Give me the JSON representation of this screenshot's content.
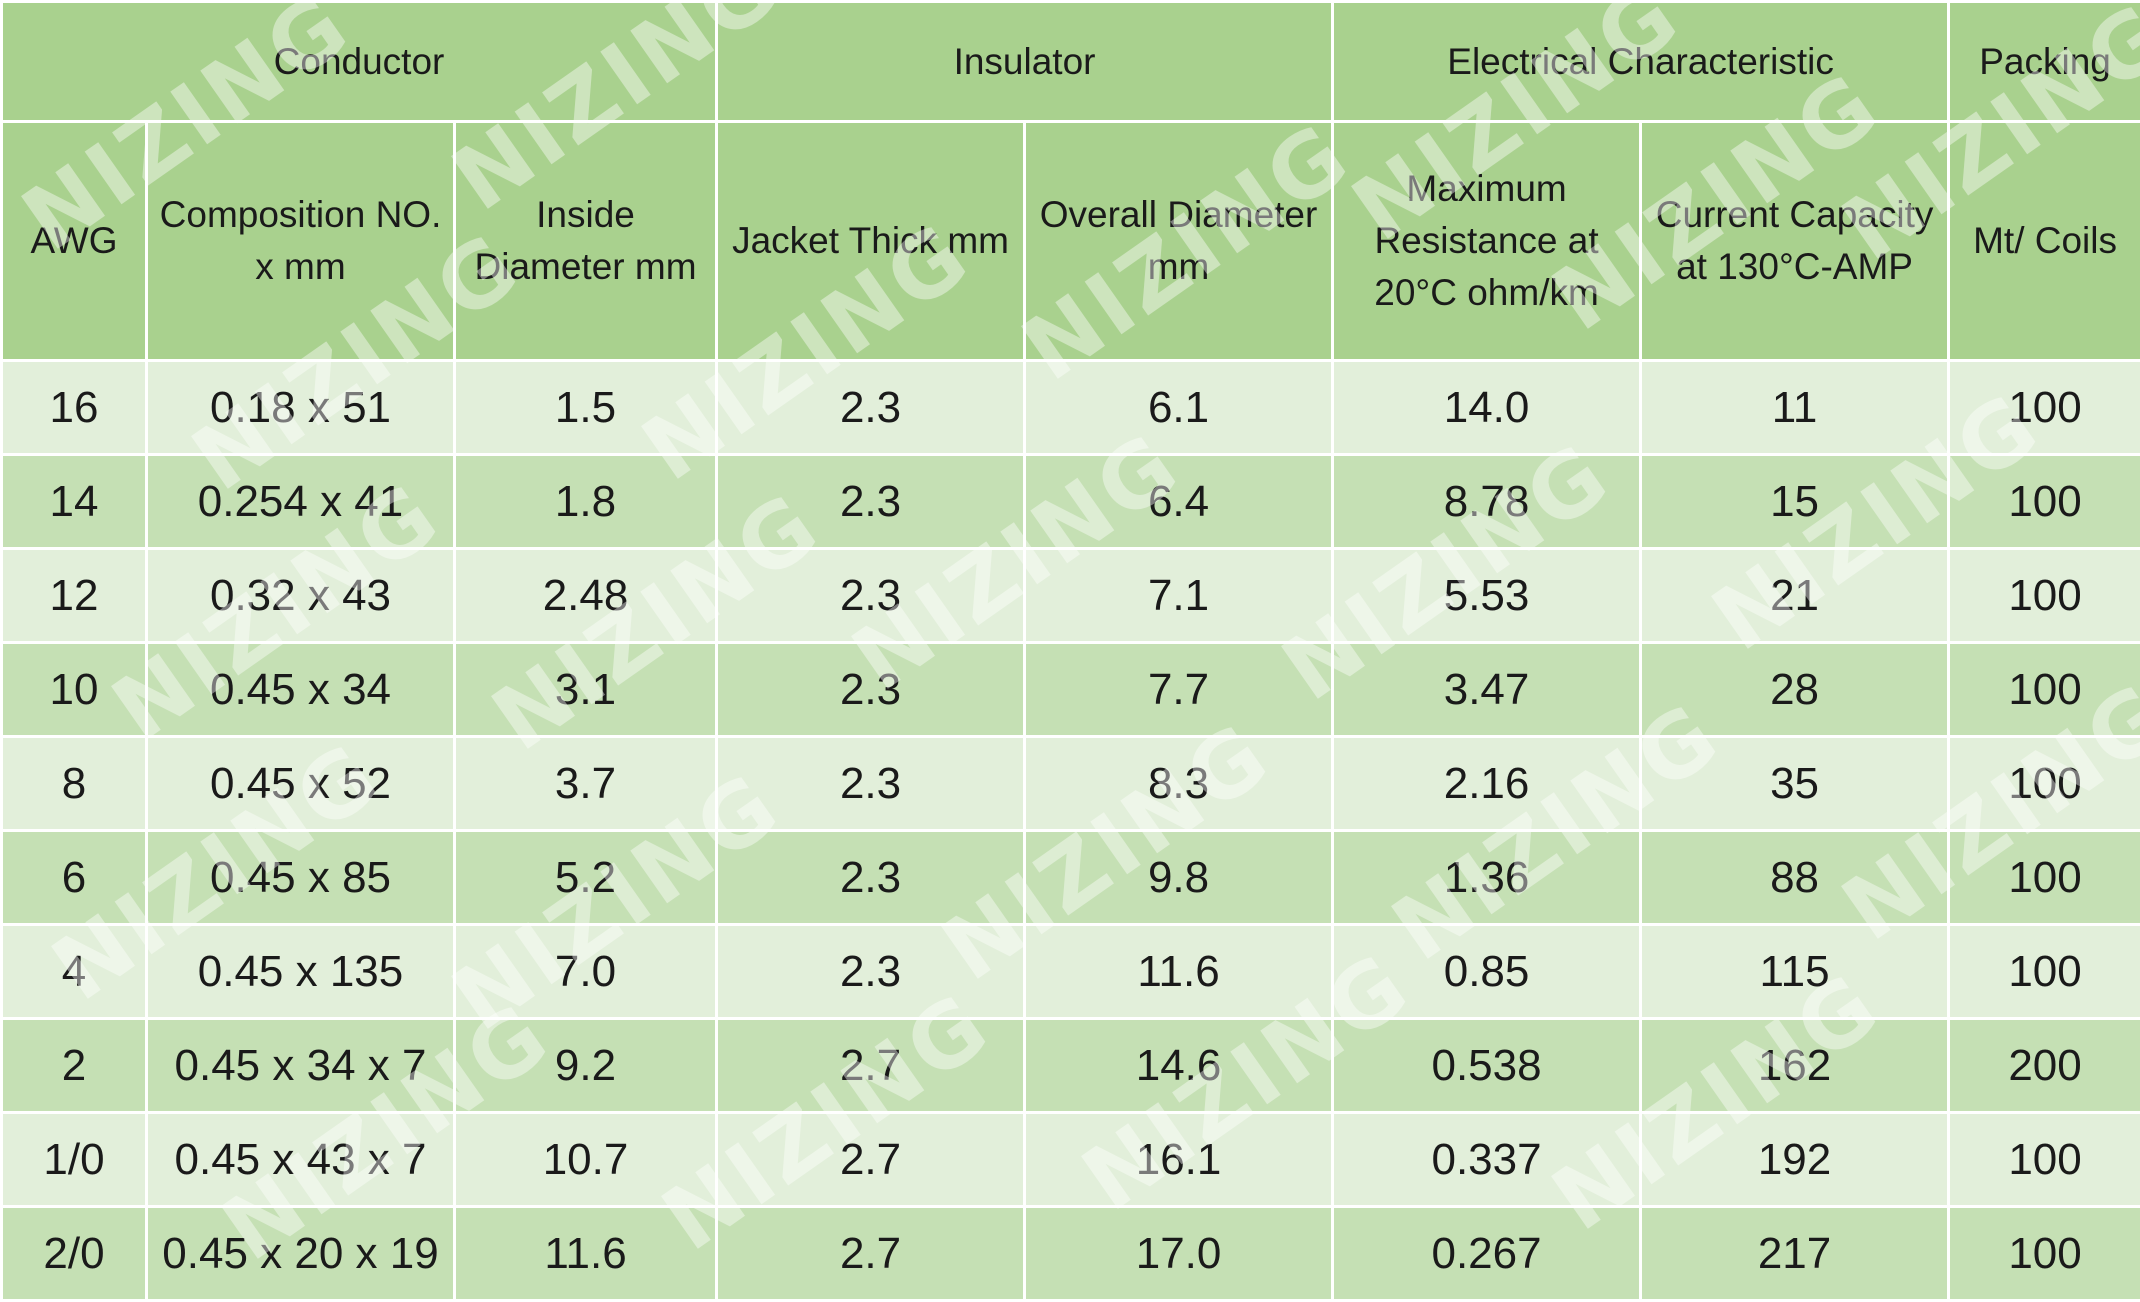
{
  "group_headers": {
    "conductor": "Conductor",
    "insulator": "Insulator",
    "electrical": "Electrical Characteristic",
    "packing": "Packing"
  },
  "columns": {
    "awg": "AWG",
    "composition": "Composition NO.\nx mm",
    "inside_diameter": "Inside\nDiameter mm",
    "jacket_thick": "Jacket Thick mm",
    "overall_diameter": "Overall Diameter\nmm",
    "max_resistance": "Maximum\nResistance at\n20°C ohm/km",
    "current_capacity": "Current Capacity\nat 130°C-AMP",
    "mt_coils": "Mt/ Coils"
  },
  "rows": [
    {
      "awg": "16",
      "composition": "0.18 x 51",
      "inside_diameter": "1.5",
      "jacket_thick": "2.3",
      "overall_diameter": "6.1",
      "max_resistance": "14.0",
      "current_capacity": "11",
      "mt_coils": "100"
    },
    {
      "awg": "14",
      "composition": "0.254 x 41",
      "inside_diameter": "1.8",
      "jacket_thick": "2.3",
      "overall_diameter": "6.4",
      "max_resistance": "8.78",
      "current_capacity": "15",
      "mt_coils": "100"
    },
    {
      "awg": "12",
      "composition": "0.32 x 43",
      "inside_diameter": "2.48",
      "jacket_thick": "2.3",
      "overall_diameter": "7.1",
      "max_resistance": "5.53",
      "current_capacity": "21",
      "mt_coils": "100"
    },
    {
      "awg": "10",
      "composition": "0.45 x 34",
      "inside_diameter": "3.1",
      "jacket_thick": "2.3",
      "overall_diameter": "7.7",
      "max_resistance": "3.47",
      "current_capacity": "28",
      "mt_coils": "100"
    },
    {
      "awg": "8",
      "composition": "0.45 x 52",
      "inside_diameter": "3.7",
      "jacket_thick": "2.3",
      "overall_diameter": "8.3",
      "max_resistance": "2.16",
      "current_capacity": "35",
      "mt_coils": "100"
    },
    {
      "awg": "6",
      "composition": "0.45 x 85",
      "inside_diameter": "5.2",
      "jacket_thick": "2.3",
      "overall_diameter": "9.8",
      "max_resistance": "1.36",
      "current_capacity": "88",
      "mt_coils": "100"
    },
    {
      "awg": "4",
      "composition": "0.45 x 135",
      "inside_diameter": "7.0",
      "jacket_thick": "2.3",
      "overall_diameter": "11.6",
      "max_resistance": "0.85",
      "current_capacity": "115",
      "mt_coils": "100"
    },
    {
      "awg": "2",
      "composition": "0.45 x 34 x 7",
      "inside_diameter": "9.2",
      "jacket_thick": "2.7",
      "overall_diameter": "14.6",
      "max_resistance": "0.538",
      "current_capacity": "162",
      "mt_coils": "200"
    },
    {
      "awg": "1/0",
      "composition": "0.45 x 43 x 7",
      "inside_diameter": "10.7",
      "jacket_thick": "2.7",
      "overall_diameter": "16.1",
      "max_resistance": "0.337",
      "current_capacity": "192",
      "mt_coils": "100"
    },
    {
      "awg": "2/0",
      "composition": "0.45 x 20 x 19",
      "inside_diameter": "11.6",
      "jacket_thick": "2.7",
      "overall_diameter": "17.0",
      "max_resistance": "0.267",
      "current_capacity": "217",
      "mt_coils": "100"
    }
  ],
  "watermark": "NIZING",
  "colors": {
    "header_bg": "#a9d18e",
    "row_light": "#e2efda",
    "row_dark": "#c5e0b4"
  }
}
